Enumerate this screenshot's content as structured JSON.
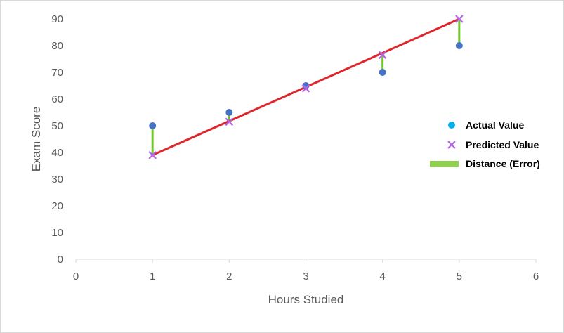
{
  "chart_data": {
    "type": "scatter",
    "xlabel": "Hours Studied",
    "ylabel": "Exam Score",
    "xlim": [
      0,
      6
    ],
    "ylim": [
      0,
      90
    ],
    "x_ticks": [
      "0",
      "1",
      "2",
      "3",
      "4",
      "5",
      "6"
    ],
    "y_ticks": [
      "0",
      "10",
      "20",
      "30",
      "40",
      "50",
      "60",
      "70",
      "80",
      "90"
    ],
    "grid": false,
    "legend_position": "right",
    "series": [
      {
        "name": "Actual Value",
        "kind": "points",
        "marker": "circle",
        "color": "#4472c4",
        "x": [
          1,
          2,
          3,
          4,
          5
        ],
        "y": [
          50,
          55,
          65,
          70,
          80
        ]
      },
      {
        "name": "Predicted Value",
        "kind": "points",
        "marker": "x",
        "color": "#b663e8",
        "x": [
          1,
          2,
          3,
          4,
          5
        ],
        "y": [
          39,
          51.5,
          64,
          76.5,
          90
        ]
      },
      {
        "name": "Distance (Error)",
        "kind": "error-bars",
        "color": "#72c829",
        "x": [
          1,
          2,
          3,
          4,
          5
        ]
      }
    ],
    "regression_line": {
      "color": "#e0262b",
      "x": [
        1,
        5
      ],
      "y": [
        39,
        90
      ]
    },
    "legend": [
      {
        "label": "Actual Value",
        "symbol": "circle",
        "color": "#00b0f0"
      },
      {
        "label": "Predicted Value",
        "symbol": "x",
        "color": "#b663e8"
      },
      {
        "label": "Distance (Error)",
        "symbol": "bar",
        "color": "#92d050"
      }
    ]
  }
}
